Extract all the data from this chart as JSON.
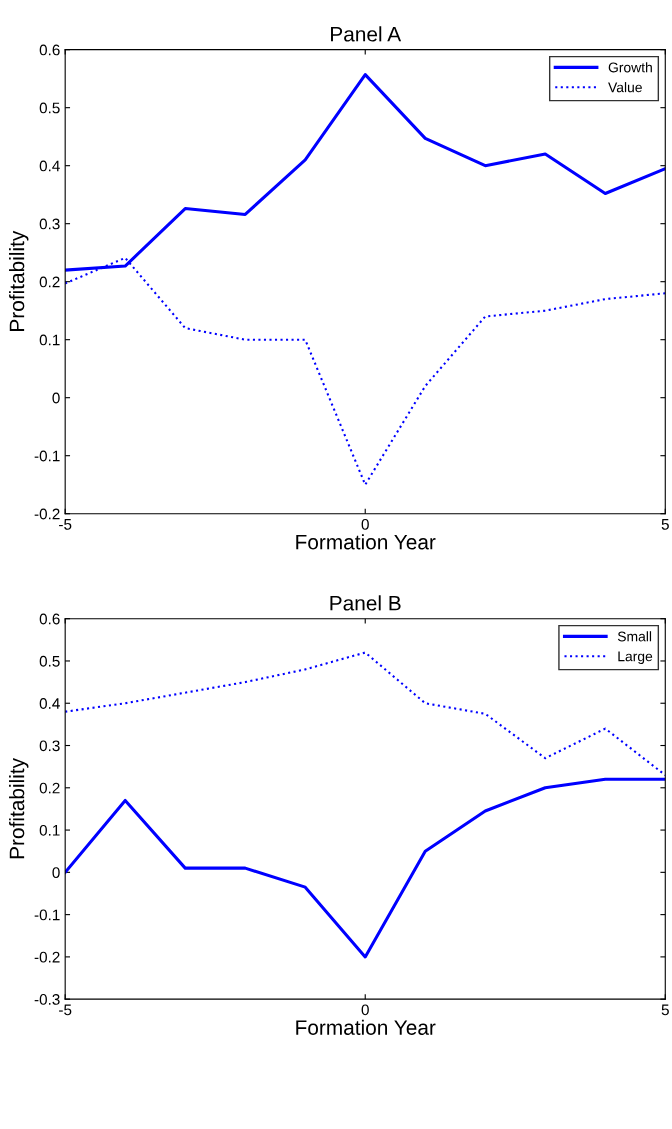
{
  "chart_data": [
    {
      "type": "line",
      "title": "Panel A",
      "xlabel": "Formation Year",
      "ylabel": "Profitability",
      "x": [
        -5,
        -4,
        -3,
        -2,
        -1,
        0,
        1,
        2,
        3,
        4,
        5
      ],
      "xlim": [
        -5,
        5
      ],
      "xticks": [
        -5,
        0,
        5
      ],
      "ylim": [
        -0.2,
        0.6
      ],
      "yticks": [
        -0.2,
        -0.1,
        0,
        0.1,
        0.2,
        0.3,
        0.4,
        0.5,
        0.6
      ],
      "grid": false,
      "legend": "top right",
      "marker": "none",
      "series": [
        {
          "name": "Growth",
          "color": "#0000ff",
          "line_style": "solid",
          "values": [
            0.22,
            0.227,
            0.326,
            0.316,
            0.41,
            0.557,
            0.447,
            0.4,
            0.42,
            0.352,
            0.395
          ]
        },
        {
          "name": "Value",
          "color": "#0000ff",
          "line_style": "dotted",
          "values": [
            0.197,
            0.241,
            0.12,
            0.1,
            0.1,
            -0.15,
            0.02,
            0.14,
            0.15,
            0.17,
            0.18
          ]
        }
      ]
    },
    {
      "type": "line",
      "title": "Panel B",
      "xlabel": "Formation Year",
      "ylabel": "Profitability",
      "x": [
        -5,
        -4,
        -3,
        -2,
        -1,
        0,
        1,
        2,
        3,
        4,
        5
      ],
      "xlim": [
        -5,
        5
      ],
      "xticks": [
        -5,
        0,
        5
      ],
      "ylim": [
        -0.3,
        0.6
      ],
      "yticks": [
        -0.3,
        -0.2,
        -0.1,
        0,
        0.1,
        0.2,
        0.3,
        0.4,
        0.5,
        0.6
      ],
      "grid": false,
      "legend": "top right",
      "marker": "none",
      "series": [
        {
          "name": "Small",
          "color": "#0000ff",
          "line_style": "solid",
          "values": [
            0.0,
            0.17,
            0.01,
            0.01,
            -0.035,
            -0.2,
            0.05,
            0.145,
            0.2,
            0.22,
            0.22
          ]
        },
        {
          "name": "Large",
          "color": "#0000ff",
          "line_style": "dotted",
          "values": [
            0.38,
            0.4,
            0.425,
            0.45,
            0.48,
            0.52,
            0.4,
            0.375,
            0.27,
            0.34,
            0.23
          ]
        }
      ]
    }
  ]
}
